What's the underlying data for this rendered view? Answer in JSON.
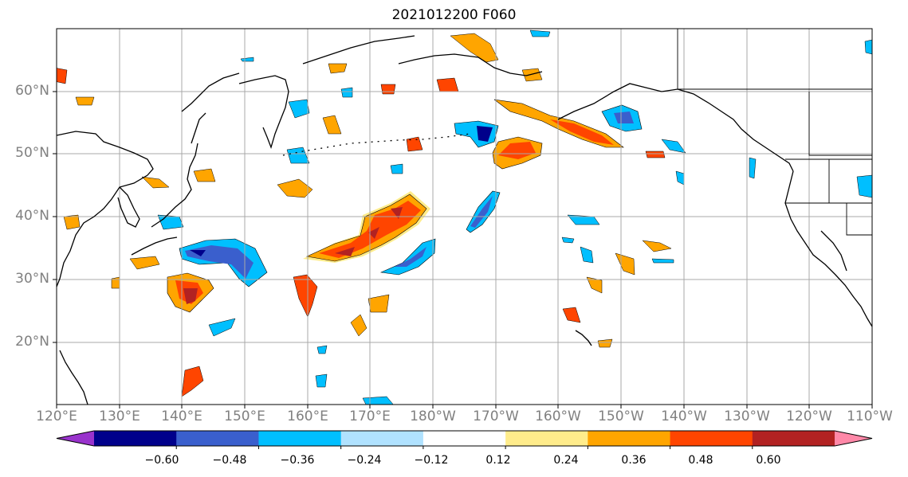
{
  "title": "2021012200 F060",
  "lat_labels": [
    "60°N",
    "50°N",
    "40°N",
    "30°N",
    "20°N"
  ],
  "lon_labels": [
    "120°E",
    "130°E",
    "140°E",
    "150°E",
    "160°E",
    "170°E",
    "180°W",
    "170°W",
    "160°W",
    "150°W",
    "140°W",
    "130°W",
    "120°W",
    "110°W"
  ],
  "colorbar": {
    "ticks": [
      "−0.60",
      "−0.48",
      "−0.36",
      "−0.24",
      "−0.12",
      "0.12",
      "0.24",
      "0.36",
      "0.48",
      "0.60"
    ],
    "colors": [
      "#9933cc",
      "#00008b",
      "#3a5fcd",
      "#00bfff",
      "#b0e2ff",
      "#ffffff",
      "#ffec8b",
      "#ffa500",
      "#ff4500",
      "#b22222",
      "#ff88a8"
    ]
  },
  "map_extent": {
    "lon_min": 120,
    "lon_max": 250,
    "lat_min": 10,
    "lat_max": 70
  }
}
